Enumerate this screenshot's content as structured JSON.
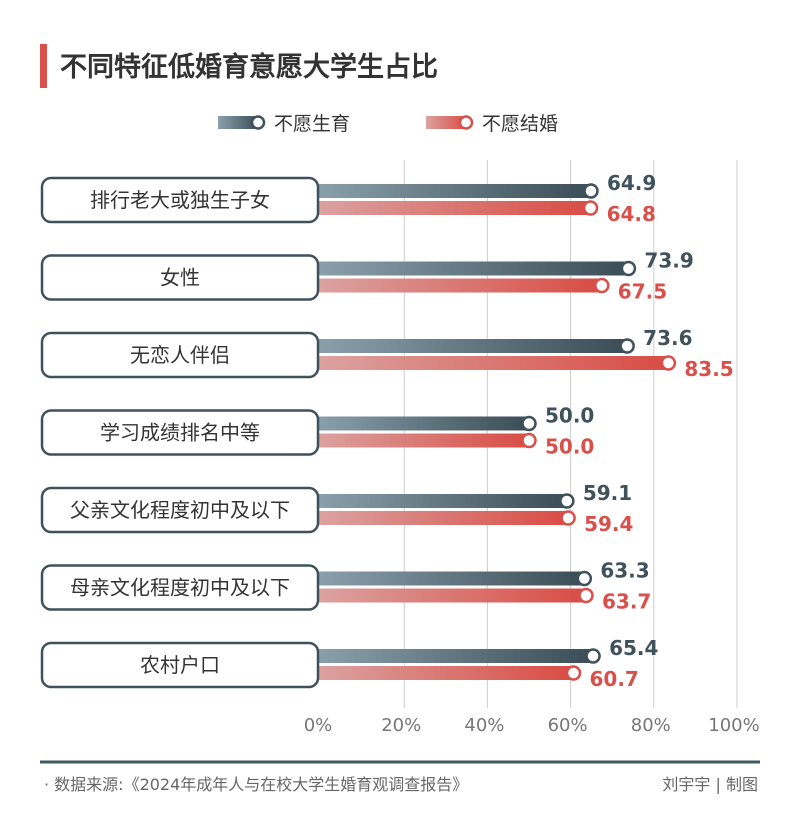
{
  "chart_data": {
    "type": "bar",
    "orientation": "horizontal",
    "title": "不同特征低婚育意愿大学生占比",
    "categories": [
      "排行老大或独生子女",
      "女性",
      "无恋人伴侣",
      "学习成绩排名中等",
      "父亲文化程度初中及以下",
      "母亲文化程度初中及以下",
      "农村户口"
    ],
    "series": [
      {
        "name": "不愿生育",
        "color": "#3f525c",
        "values": [
          64.9,
          73.9,
          73.6,
          50.0,
          59.1,
          63.3,
          65.4
        ]
      },
      {
        "name": "不愿结婚",
        "color": "#d9504a",
        "values": [
          64.8,
          67.5,
          83.5,
          50.0,
          59.4,
          63.7,
          60.7
        ]
      }
    ],
    "xlim": [
      0,
      100
    ],
    "xticks": [
      "0%",
      "20%",
      "40%",
      "60%",
      "80%",
      "100%"
    ],
    "grid": true,
    "legend_position": "top-center"
  },
  "footer": {
    "source": "· 数据来源:《2024年成年人与在校大学生婚育观调查报告》",
    "credit": "刘宇宇 | 制图"
  }
}
